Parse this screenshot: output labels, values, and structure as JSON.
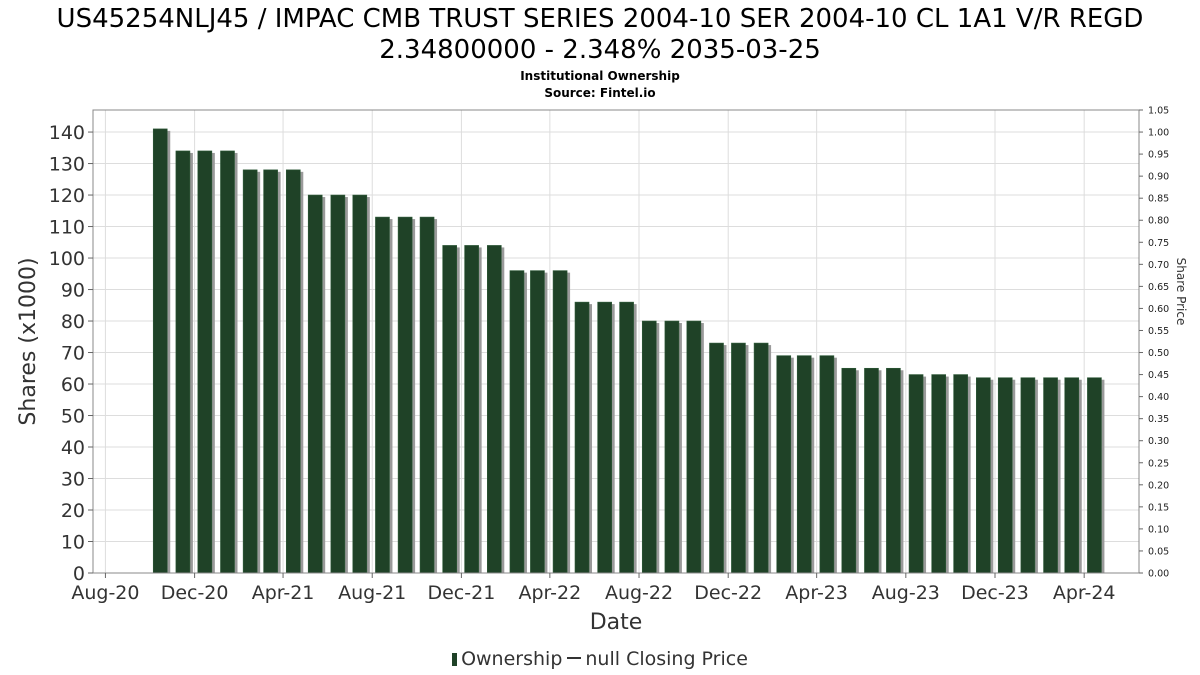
{
  "chart_data": {
    "type": "bar",
    "title_line1": "US45254NLJ45 / IMPAC CMB TRUST SERIES 2004-10 SER 2004-10 CL 1A1 V/R REGD",
    "title_line2": "2.34800000 - 2.348% 2035-03-25",
    "subtitle_line1": "Institutional Ownership",
    "subtitle_line2": "Source: Fintel.io",
    "xlabel": "Date",
    "ylabel": "Shares (x1000)",
    "y2label": "Share Price",
    "ylim": [
      0,
      147
    ],
    "y2lim": [
      0,
      1.05
    ],
    "y_ticks": [
      0,
      10,
      20,
      30,
      40,
      50,
      60,
      70,
      80,
      90,
      100,
      110,
      120,
      130,
      140
    ],
    "y2_ticks": [
      "0.00",
      "0.05",
      "0.10",
      "0.15",
      "0.20",
      "0.25",
      "0.30",
      "0.35",
      "0.40",
      "0.45",
      "0.50",
      "0.55",
      "0.60",
      "0.65",
      "0.70",
      "0.75",
      "0.80",
      "0.85",
      "0.90",
      "0.95",
      "1.00",
      "1.05"
    ],
    "x_range": [
      "2020-07-15",
      "2024-06-15"
    ],
    "x_ticks": [
      {
        "date": "2020-08-01",
        "label": "Aug-20"
      },
      {
        "date": "2020-12-01",
        "label": "Dec-20"
      },
      {
        "date": "2021-04-01",
        "label": "Apr-21"
      },
      {
        "date": "2021-08-01",
        "label": "Aug-21"
      },
      {
        "date": "2021-12-01",
        "label": "Dec-21"
      },
      {
        "date": "2022-04-01",
        "label": "Apr-22"
      },
      {
        "date": "2022-08-01",
        "label": "Aug-22"
      },
      {
        "date": "2022-12-01",
        "label": "Dec-22"
      },
      {
        "date": "2023-04-01",
        "label": "Apr-23"
      },
      {
        "date": "2023-08-01",
        "label": "Aug-23"
      },
      {
        "date": "2023-12-01",
        "label": "Dec-23"
      },
      {
        "date": "2024-04-01",
        "label": "Apr-24"
      }
    ],
    "series": [
      {
        "name": "Ownership",
        "color": "#1f4227",
        "points": [
          {
            "x": "2020-10-15",
            "y": 141
          },
          {
            "x": "2020-11-15",
            "y": 134
          },
          {
            "x": "2020-12-15",
            "y": 134
          },
          {
            "x": "2021-01-15",
            "y": 134
          },
          {
            "x": "2021-02-15",
            "y": 128
          },
          {
            "x": "2021-03-15",
            "y": 128
          },
          {
            "x": "2021-04-15",
            "y": 128
          },
          {
            "x": "2021-05-15",
            "y": 120
          },
          {
            "x": "2021-06-15",
            "y": 120
          },
          {
            "x": "2021-07-15",
            "y": 120
          },
          {
            "x": "2021-08-15",
            "y": 113
          },
          {
            "x": "2021-09-15",
            "y": 113
          },
          {
            "x": "2021-10-15",
            "y": 113
          },
          {
            "x": "2021-11-15",
            "y": 104
          },
          {
            "x": "2021-12-15",
            "y": 104
          },
          {
            "x": "2022-01-15",
            "y": 104
          },
          {
            "x": "2022-02-15",
            "y": 96
          },
          {
            "x": "2022-03-15",
            "y": 96
          },
          {
            "x": "2022-04-15",
            "y": 96
          },
          {
            "x": "2022-05-15",
            "y": 86
          },
          {
            "x": "2022-06-15",
            "y": 86
          },
          {
            "x": "2022-07-15",
            "y": 86
          },
          {
            "x": "2022-08-15",
            "y": 80
          },
          {
            "x": "2022-09-15",
            "y": 80
          },
          {
            "x": "2022-10-15",
            "y": 80
          },
          {
            "x": "2022-11-15",
            "y": 73
          },
          {
            "x": "2022-12-15",
            "y": 73
          },
          {
            "x": "2023-01-15",
            "y": 73
          },
          {
            "x": "2023-02-15",
            "y": 69
          },
          {
            "x": "2023-03-15",
            "y": 69
          },
          {
            "x": "2023-04-15",
            "y": 69
          },
          {
            "x": "2023-05-15",
            "y": 65
          },
          {
            "x": "2023-06-15",
            "y": 65
          },
          {
            "x": "2023-07-15",
            "y": 65
          },
          {
            "x": "2023-08-15",
            "y": 63
          },
          {
            "x": "2023-09-15",
            "y": 63
          },
          {
            "x": "2023-10-15",
            "y": 63
          },
          {
            "x": "2023-11-15",
            "y": 62
          },
          {
            "x": "2023-12-15",
            "y": 62
          },
          {
            "x": "2024-01-15",
            "y": 62
          },
          {
            "x": "2024-02-15",
            "y": 62
          },
          {
            "x": "2024-03-15",
            "y": 62
          },
          {
            "x": "2024-04-15",
            "y": 62
          }
        ]
      }
    ],
    "legend": {
      "position": "bottom",
      "ownership_label": "Ownership",
      "price_label": "null Closing Price"
    },
    "grid": true
  }
}
